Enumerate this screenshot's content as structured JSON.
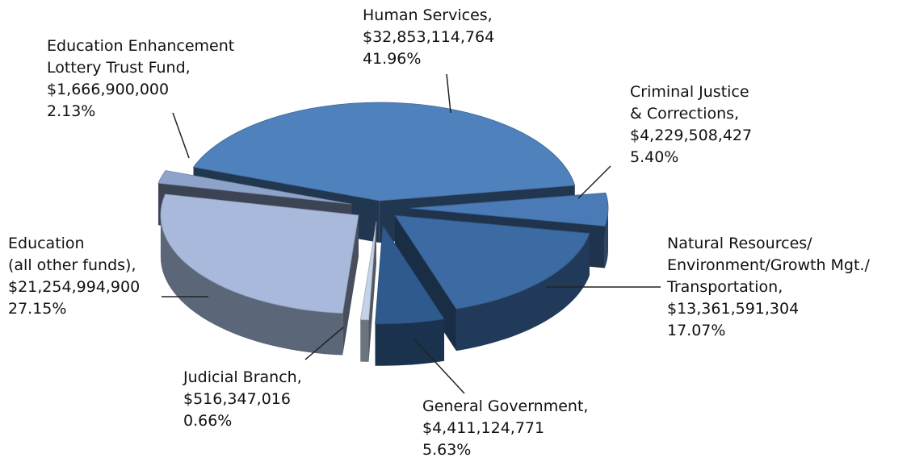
{
  "chart_data": {
    "type": "pie",
    "style": "3d-exploded",
    "slices": [
      {
        "name": "Human Services",
        "amount": "$32,853,114,764",
        "percent": "41.96%",
        "value": 41.96,
        "color": "#4f81bd"
      },
      {
        "name": "Criminal Justice & Corrections",
        "amount": "$4,229,508,427",
        "percent": "5.40%",
        "value": 5.4,
        "color": "#4a7bb6"
      },
      {
        "name": "Natural Resources/ Environment/Growth Mgt./ Transportation",
        "amount": "$13,361,591,304",
        "percent": "17.07%",
        "value": 17.07,
        "color": "#3c6aa3"
      },
      {
        "name": "General Government",
        "amount": "$4,411,124,771",
        "percent": "5.63%",
        "value": 5.63,
        "color": "#2f5a8e"
      },
      {
        "name": "Judicial Branch",
        "amount": "$516,347,016",
        "percent": "0.66%",
        "value": 0.66,
        "color": "#c5d3e8"
      },
      {
        "name": "Education (all other funds)",
        "amount": "$21,254,994,900",
        "percent": "27.15%",
        "value": 27.15,
        "color": "#a8b9dc"
      },
      {
        "name": "Education Enhancement Lottery Trust Fund",
        "amount": "$1,666,900,000",
        "percent": "2.13%",
        "value": 2.13,
        "color": "#8ea3c9"
      }
    ],
    "labels": {
      "human_services": {
        "l1": "Human Services,",
        "l2": "$32,853,114,764",
        "l3": "41.96%"
      },
      "criminal_justice": {
        "l1": "Criminal Justice",
        "l2": "& Corrections,",
        "l3": "$4,229,508,427",
        "l4": "5.40%"
      },
      "natural_resources": {
        "l1": "Natural Resources/",
        "l2": "Environment/Growth Mgt./",
        "l3": "Transportation,",
        "l4": "$13,361,591,304",
        "l5": "17.07%"
      },
      "general_government": {
        "l1": "General Government,",
        "l2": "$4,411,124,771",
        "l3": "5.63%"
      },
      "judicial": {
        "l1": "Judicial Branch,",
        "l2": "$516,347,016",
        "l3": "0.66%"
      },
      "education": {
        "l1": "Education",
        "l2": "(all other funds),",
        "l3": "$21,254,994,900",
        "l4": "27.15%"
      },
      "lottery": {
        "l1": "Education Enhancement",
        "l2": "Lottery Trust Fund,",
        "l3": "$1,666,900,000",
        "l4": "2.13%"
      }
    }
  }
}
